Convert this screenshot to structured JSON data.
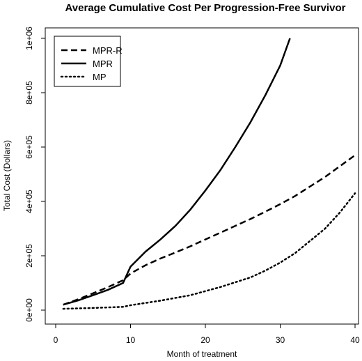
{
  "chart_data": {
    "type": "line",
    "title": "Average Cumulative Cost Per Progression-Free Survivor",
    "xlabel": "Month of treatment",
    "ylabel": "Total Cost (Dollars)",
    "xlim": [
      0,
      40
    ],
    "ylim": [
      0,
      1000000
    ],
    "x_ticks": [
      0,
      10,
      20,
      30,
      40
    ],
    "x_tick_labels": [
      "0",
      "10",
      "20",
      "30",
      "40"
    ],
    "y_ticks": [
      0,
      200000,
      400000,
      600000,
      800000,
      1000000
    ],
    "y_tick_labels": [
      "0e+00",
      "2e+05",
      "4e+05",
      "6e+05",
      "8e+05",
      "1e+06"
    ],
    "grid": false,
    "legend_position": "top-left",
    "series": [
      {
        "name": "MPR-R",
        "style": "dashed",
        "color": "#000000",
        "x": [
          1,
          3,
          5,
          7,
          9,
          10,
          12,
          14,
          16,
          18,
          20,
          22,
          24,
          26,
          28,
          30,
          32,
          34,
          36,
          38,
          40
        ],
        "y": [
          20000,
          40000,
          62000,
          85000,
          110000,
          135000,
          165000,
          190000,
          212000,
          235000,
          260000,
          285000,
          310000,
          335000,
          362000,
          390000,
          420000,
          455000,
          490000,
          530000,
          570000
        ]
      },
      {
        "name": "MPR",
        "style": "solid",
        "color": "#000000",
        "x": [
          1,
          3,
          5,
          7,
          9,
          10,
          12,
          14,
          16,
          18,
          20,
          22,
          24,
          26,
          28,
          30,
          31.3
        ],
        "y": [
          20000,
          36000,
          55000,
          75000,
          100000,
          160000,
          215000,
          260000,
          310000,
          370000,
          440000,
          515000,
          600000,
          690000,
          790000,
          900000,
          1000000
        ]
      },
      {
        "name": "MP",
        "style": "dotted",
        "color": "#000000",
        "x": [
          1,
          5,
          9,
          10,
          14,
          18,
          22,
          26,
          28,
          30,
          32,
          34,
          36,
          38,
          40
        ],
        "y": [
          5000,
          8000,
          12000,
          18000,
          35000,
          55000,
          85000,
          120000,
          145000,
          175000,
          210000,
          255000,
          300000,
          360000,
          430000
        ]
      }
    ]
  }
}
